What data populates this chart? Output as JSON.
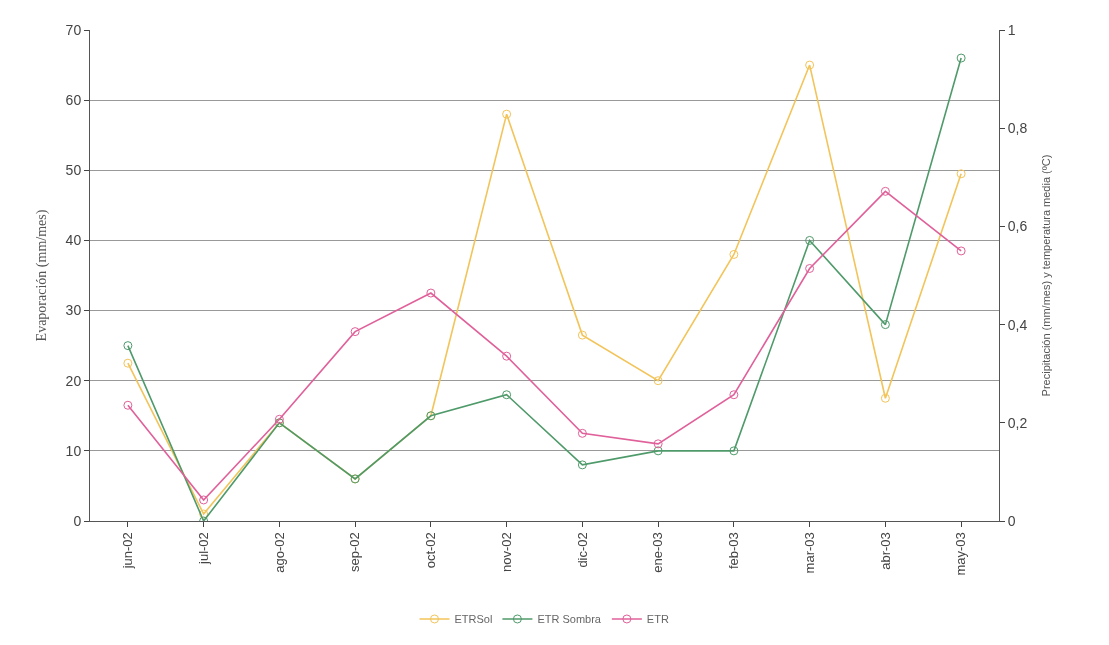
{
  "chart_data": {
    "type": "line",
    "categories": [
      "jun-02",
      "jul-02",
      "ago-02",
      "sep-02",
      "oct-02",
      "nov-02",
      "dic-02",
      "ene-03",
      "feb-03",
      "mar-03",
      "abr-03",
      "may-03"
    ],
    "series": [
      {
        "name": "ETRSol",
        "color": "#f2c45a",
        "values": [
          22.5,
          1,
          14,
          6,
          15,
          58,
          26.5,
          20,
          38,
          65,
          17.5,
          49.5
        ]
      },
      {
        "name": "ETR Sombra",
        "color": "#4f9a6a",
        "values": [
          25,
          0,
          14,
          6,
          15,
          18,
          8,
          10,
          10,
          40,
          28,
          66
        ]
      },
      {
        "name": "ETR",
        "color": "#e0609a",
        "values": [
          16.5,
          3,
          14.5,
          27,
          32.5,
          23.5,
          12.5,
          11,
          18,
          36,
          47,
          38.5
        ]
      }
    ],
    "ylabel": "Evaporación (mm/mes)",
    "y2label": "Precipitación (mm/mes) y temperatura media (ºC)",
    "ylim": [
      0,
      70
    ],
    "yticks": [
      0,
      10,
      20,
      30,
      40,
      50,
      60,
      70
    ],
    "y2lim": [
      0,
      1
    ],
    "y2ticks": [
      0,
      {
        "value": 0.2,
        "label": "0,2"
      },
      {
        "value": 0.4,
        "label": "0,4"
      },
      {
        "value": 0.6,
        "label": "0,6"
      },
      {
        "value": 0.8,
        "label": "0,8"
      },
      1
    ],
    "grid": "y",
    "legend": "bottom",
    "marker": "circle",
    "line_style": "solid"
  }
}
